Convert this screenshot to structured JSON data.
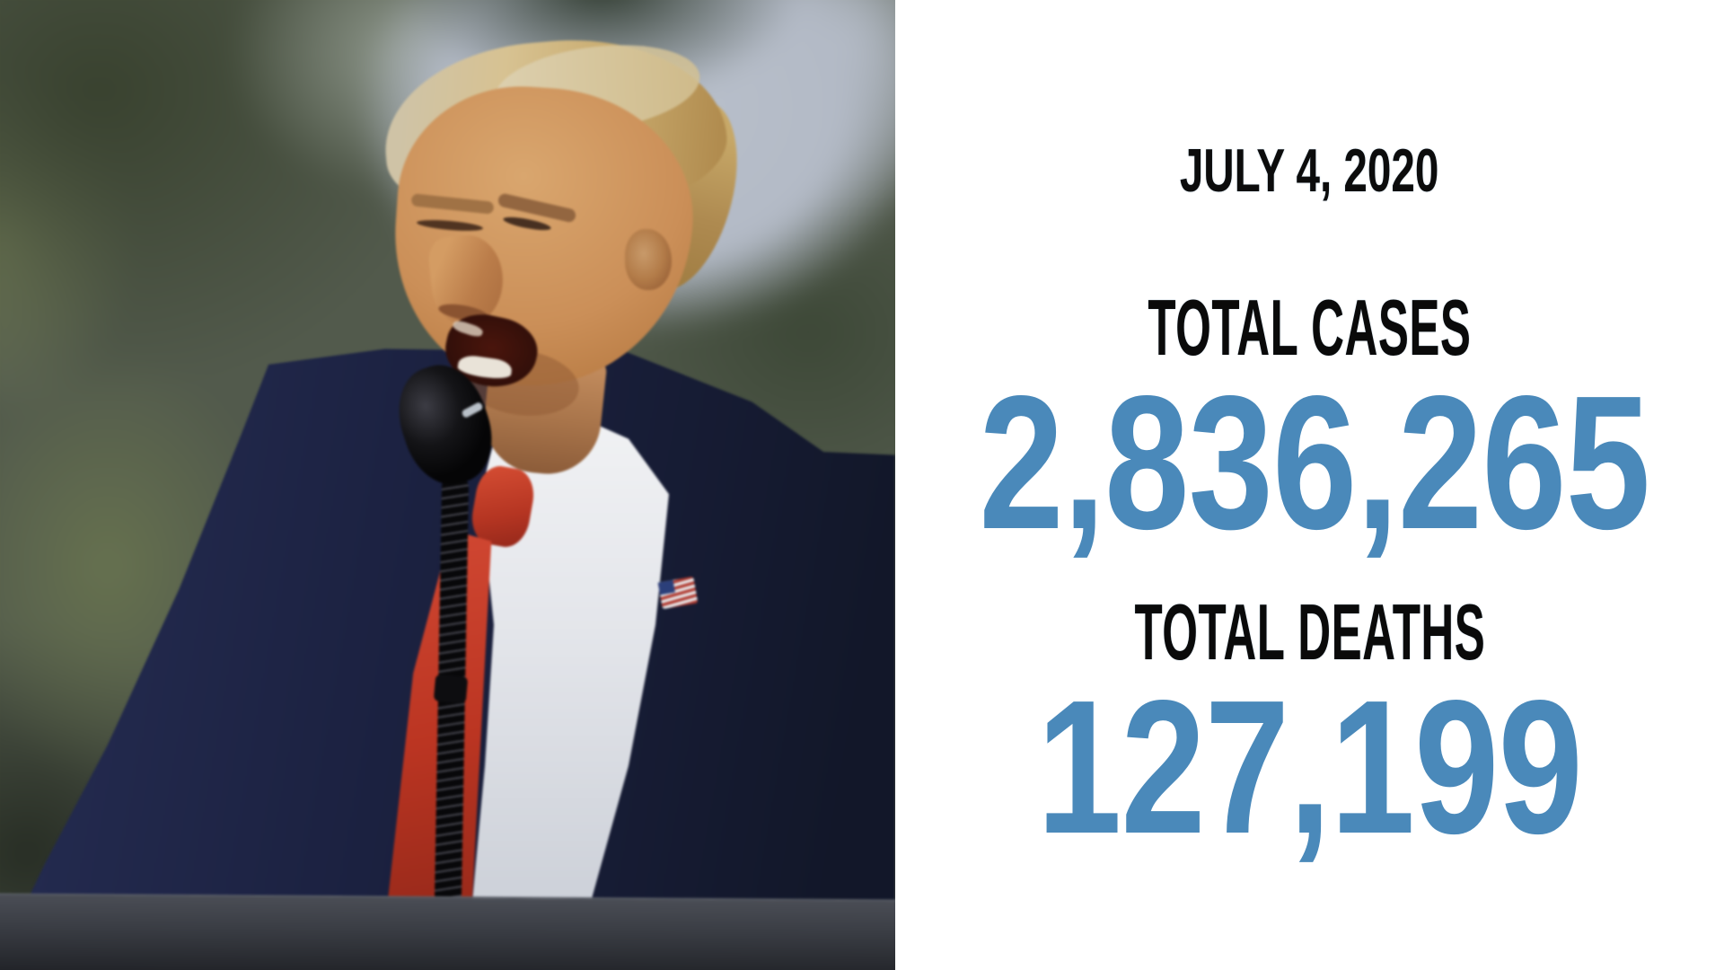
{
  "frame": {
    "alt": "Video still: President Trump speaking outdoors at a dark podium into a microphone with coiled cable, wearing a navy suit, white shirt, red tie and American flag lapel pin, with blurred green trees and gray sky behind him; COVID-19 statistics panel on the right"
  },
  "photo": {
    "alt": "Trump speaking at outdoor podium",
    "colors": {
      "suit_navy": "#1b2140",
      "tie_red": "#bb3522",
      "shirt_white": "#e9eaee",
      "trees_green": "#49513f",
      "sky_gray": "#b6bdc8",
      "podium_gray": "#3a3d44"
    }
  },
  "panel": {
    "date": "JULY 4, 2020",
    "cases_label": "TOTAL CASES",
    "cases_value": "2,836,265",
    "deaths_label": "TOTAL DEATHS",
    "deaths_value": "127,199",
    "colors": {
      "background": "#ffffff",
      "label_text": "#0a0a0a",
      "value_text": "#4a89ba"
    }
  }
}
